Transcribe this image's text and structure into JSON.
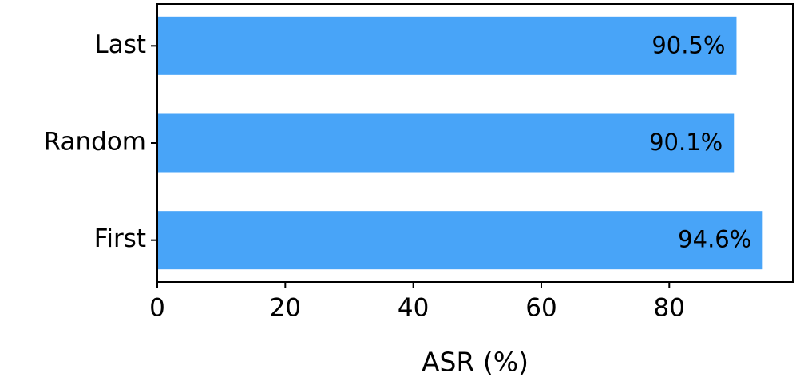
{
  "chart_data": {
    "type": "bar",
    "orientation": "horizontal",
    "categories": [
      "First",
      "Random",
      "Last"
    ],
    "values": [
      94.6,
      90.1,
      90.5
    ],
    "value_labels": [
      "94.6%",
      "90.1%",
      "90.5%"
    ],
    "color": "#48a4f8",
    "xlabel": "ASR (%)",
    "xlim": [
      0,
      99.3
    ],
    "xticks": [
      0,
      20,
      40,
      60,
      80
    ],
    "grid": false
  }
}
